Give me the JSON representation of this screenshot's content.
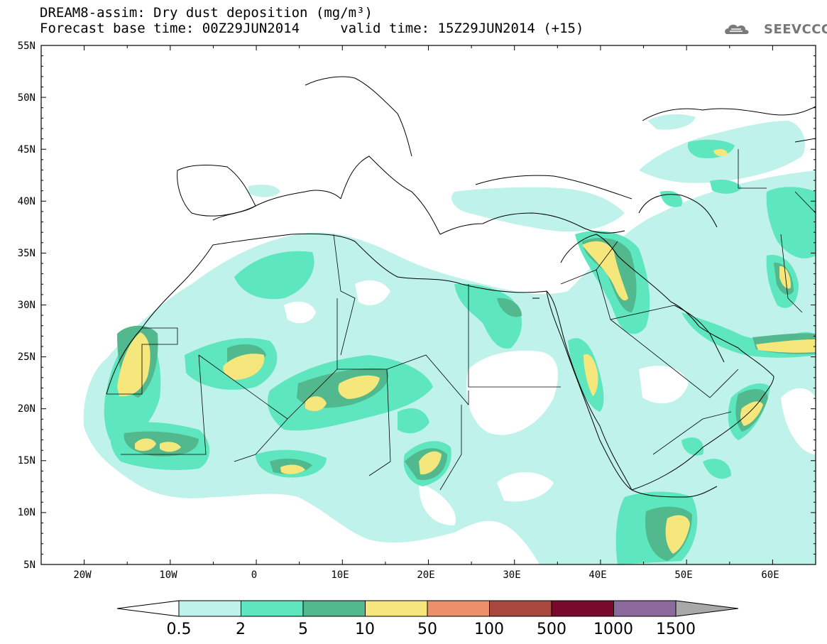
{
  "header": {
    "title_line1": "DREAM8-assim: Dry dust deposition (mg/m³)",
    "title_line2": "Forecast base time: 00Z29JUN2014     valid time: 15Z29JUN2014 (+15)",
    "logo_text": "SEEVCCC"
  },
  "map": {
    "lat_labels": [
      "55N",
      "50N",
      "45N",
      "40N",
      "35N",
      "30N",
      "25N",
      "20N",
      "15N",
      "10N",
      "5N"
    ],
    "lon_labels": [
      "20W",
      "10W",
      "0",
      "10E",
      "20E",
      "30E",
      "40E",
      "50E",
      "60E"
    ],
    "lat_range": [
      5,
      55
    ],
    "lon_range": [
      -25,
      65
    ]
  },
  "colorbar": {
    "levels": [
      "0.5",
      "2",
      "5",
      "10",
      "50",
      "100",
      "500",
      "1000",
      "1500"
    ],
    "colors": [
      "#ffffff",
      "#bff2ea",
      "#5ee6be",
      "#52b88e",
      "#f5e77c",
      "#eb9068",
      "#a8483f",
      "#7a0a2c",
      "#8d6a9c",
      "#a9a9a9"
    ]
  }
}
